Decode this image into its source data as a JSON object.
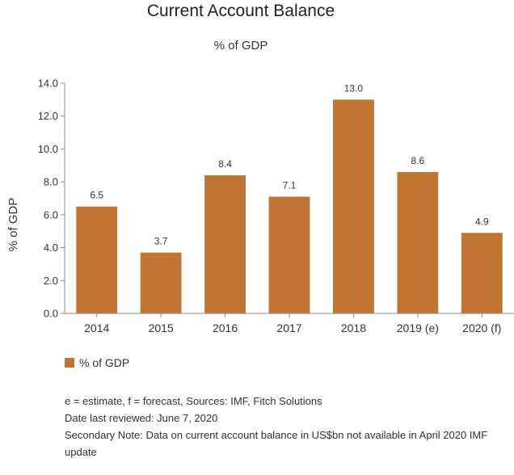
{
  "chart_data": {
    "type": "bar",
    "title": "Current Account Balance",
    "subtitle": "% of GDP",
    "ylabel": "% of GDP",
    "xlabel": "",
    "categories": [
      "2014",
      "2015",
      "2016",
      "2017",
      "2018",
      "2019 (e)",
      "2020 (f)"
    ],
    "series": [
      {
        "name": "% of GDP",
        "values": [
          6.5,
          3.7,
          8.4,
          7.1,
          13.0,
          8.6,
          4.9
        ],
        "color": "#c07533"
      }
    ],
    "data_labels": [
      "6.5",
      "3.7",
      "8.4",
      "7.1",
      "13.0",
      "8.6",
      "4.9"
    ],
    "ylim": [
      0,
      14
    ],
    "yticks": [
      "0.0",
      "2.0",
      "4.0",
      "6.0",
      "8.0",
      "10.0",
      "12.0",
      "14.0"
    ],
    "grid": false,
    "legend_position": "bottom-left"
  },
  "legend": {
    "label": "% of GDP"
  },
  "notes": [
    "e = estimate, f = forecast, Sources: IMF, Fitch Solutions",
    "Date last reviewed: June 7, 2020",
    "Secondary Note: Data on current account balance in US$bn not available in April 2020 IMF update"
  ]
}
